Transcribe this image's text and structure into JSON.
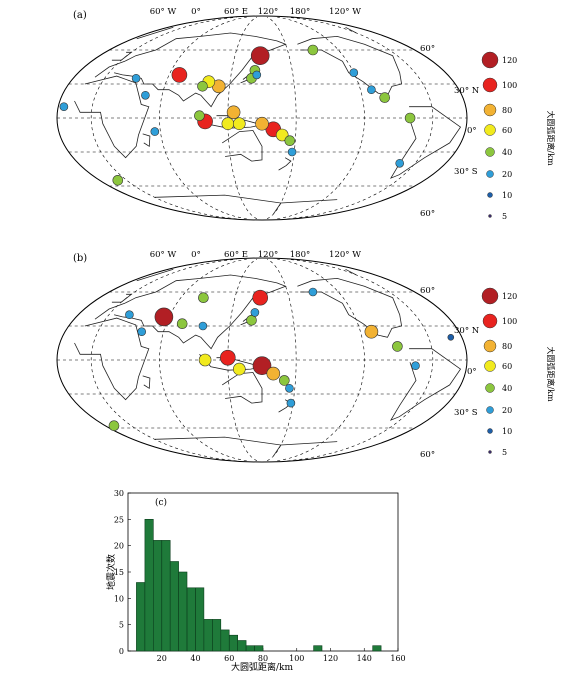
{
  "map_a": {
    "panel_label": "(a)",
    "top_lon_labels": [
      "60° W",
      "0°",
      "60° E",
      "120°",
      "180°",
      "120° W"
    ],
    "right_lat_labels": [
      "60°",
      "30° N",
      "0°",
      "30° S",
      "60°"
    ],
    "legend_title": "大圆弧距离/km",
    "legend_values": [
      "120",
      "100",
      "80",
      "60",
      "40",
      "20",
      "10",
      "5"
    ]
  },
  "map_b": {
    "panel_label": "(b)",
    "top_lon_labels": [
      "60° W",
      "0°",
      "60° E",
      "120°",
      "180°",
      "120° W"
    ],
    "right_lat_labels": [
      "60°",
      "30° N",
      "0°",
      "30° S",
      "60°"
    ],
    "legend_title": "大圆弧距离/km",
    "legend_values": [
      "120",
      "100",
      "80",
      "60",
      "40",
      "20",
      "10",
      "5"
    ]
  },
  "legend_colors": [
    "#b21f24",
    "#e8231f",
    "#f2b233",
    "#f1ea1e",
    "#8cc63e",
    "#2f9ed8",
    "#1d5ea8",
    "#3b2a6b"
  ],
  "histogram": {
    "panel_label": "(c)",
    "ylabel": "地震次数",
    "xlabel": "大圆弧距离/km",
    "bar_color": "#1f7a3a"
  },
  "chart_data": [
    {
      "type": "scatter",
      "title": "",
      "size_legend_km": [
        120,
        100,
        80,
        60,
        40,
        20,
        10,
        5
      ],
      "lon_ticks": [
        "60° W",
        "0°",
        "60° E",
        "120°",
        "180°",
        "120° W"
      ],
      "lat_ticks": [
        "60°",
        "30° N",
        "0°",
        "30° S",
        "60°"
      ],
      "points": [
        {
          "lon": 148,
          "lat": 55,
          "km": 110
        },
        {
          "lon": 70,
          "lat": 38,
          "km": 100
        },
        {
          "lon": 100,
          "lat": 32,
          "km": 60
        },
        {
          "lon": 110,
          "lat": 28,
          "km": 80
        },
        {
          "lon": 95,
          "lat": 28,
          "km": 40
        },
        {
          "lon": 143,
          "lat": 42,
          "km": 40
        },
        {
          "lon": 145,
          "lat": 38,
          "km": 20
        },
        {
          "lon": 140,
          "lat": 35,
          "km": 40
        },
        {
          "lon": 125,
          "lat": 5,
          "km": 80
        },
        {
          "lon": 120,
          "lat": -5,
          "km": 60
        },
        {
          "lon": 95,
          "lat": 2,
          "km": 40
        },
        {
          "lon": 100,
          "lat": -3,
          "km": 100
        },
        {
          "lon": 130,
          "lat": -5,
          "km": 60
        },
        {
          "lon": 150,
          "lat": -5,
          "km": 80
        },
        {
          "lon": 160,
          "lat": -10,
          "km": 100
        },
        {
          "lon": 168,
          "lat": -15,
          "km": 60
        },
        {
          "lon": 175,
          "lat": -20,
          "km": 40
        },
        {
          "lon": 178,
          "lat": -30,
          "km": 20
        },
        {
          "lon": -150,
          "lat": 60,
          "km": 40
        },
        {
          "lon": -120,
          "lat": 40,
          "km": 20
        },
        {
          "lon": -100,
          "lat": 18,
          "km": 40
        },
        {
          "lon": -80,
          "lat": 0,
          "km": 40
        },
        {
          "lon": -75,
          "lat": -40,
          "km": 20
        },
        {
          "lon": -10,
          "lat": -55,
          "km": 40
        },
        {
          "lon": 30,
          "lat": 35,
          "km": 20
        },
        {
          "lon": 45,
          "lat": 20,
          "km": 20
        },
        {
          "lon": -110,
          "lat": 25,
          "km": 20
        },
        {
          "lon": 55,
          "lat": -12,
          "km": 20
        },
        {
          "lon": -25,
          "lat": 10,
          "km": 20
        }
      ]
    },
    {
      "type": "scatter",
      "title": "",
      "size_legend_km": [
        120,
        100,
        80,
        60,
        40,
        20,
        10,
        5
      ],
      "lon_ticks": [
        "60° W",
        "0°",
        "60° E",
        "120°",
        "180°",
        "120° W"
      ],
      "lat_ticks": [
        "60°",
        "30° N",
        "0°",
        "30° S",
        "60°"
      ],
      "points": [
        {
          "lon": 148,
          "lat": 55,
          "km": 100
        },
        {
          "lon": 55,
          "lat": 38,
          "km": 120
        },
        {
          "lon": 75,
          "lat": 32,
          "km": 40
        },
        {
          "lon": 85,
          "lat": 55,
          "km": 40
        },
        {
          "lon": 95,
          "lat": 30,
          "km": 20
        },
        {
          "lon": 143,
          "lat": 42,
          "km": 20
        },
        {
          "lon": 120,
          "lat": 2,
          "km": 100
        },
        {
          "lon": 100,
          "lat": 0,
          "km": 60
        },
        {
          "lon": 150,
          "lat": -5,
          "km": 120
        },
        {
          "lon": 160,
          "lat": -12,
          "km": 80
        },
        {
          "lon": 170,
          "lat": -18,
          "km": 40
        },
        {
          "lon": 175,
          "lat": -25,
          "km": 20
        },
        {
          "lon": -150,
          "lat": 60,
          "km": 20
        },
        {
          "lon": -110,
          "lat": 25,
          "km": 80
        },
        {
          "lon": -90,
          "lat": 12,
          "km": 40
        },
        {
          "lon": -75,
          "lat": -5,
          "km": 20
        },
        {
          "lon": -20,
          "lat": -58,
          "km": 40
        },
        {
          "lon": 20,
          "lat": 40,
          "km": 20
        },
        {
          "lon": 40,
          "lat": 25,
          "km": 20
        },
        {
          "lon": 130,
          "lat": -8,
          "km": 60
        },
        {
          "lon": 140,
          "lat": 35,
          "km": 40
        },
        {
          "lon": -40,
          "lat": 20,
          "km": 10
        },
        {
          "lon": 178,
          "lat": -38,
          "km": 20
        }
      ]
    },
    {
      "type": "bar",
      "title": "",
      "xlabel": "大圆弧距离/km",
      "ylabel": "地震次数",
      "bin_width": 5,
      "bin_starts": [
        5,
        10,
        15,
        20,
        25,
        30,
        35,
        40,
        45,
        50,
        55,
        60,
        65,
        70,
        75,
        80,
        85,
        90,
        95,
        100,
        105,
        110,
        115,
        120,
        125,
        130,
        135,
        140,
        145
      ],
      "values": [
        13,
        25,
        21,
        21,
        17,
        15,
        12,
        12,
        6,
        6,
        4,
        3,
        2,
        1,
        1,
        0,
        0,
        0,
        0,
        0,
        0,
        1,
        0,
        0,
        0,
        0,
        0,
        0,
        1
      ],
      "xlim": [
        0,
        160
      ],
      "ylim": [
        0,
        30
      ],
      "xticks": [
        20,
        40,
        60,
        80,
        100,
        120,
        140,
        160
      ],
      "yticks": [
        0,
        5,
        10,
        15,
        20,
        25,
        30
      ]
    }
  ]
}
